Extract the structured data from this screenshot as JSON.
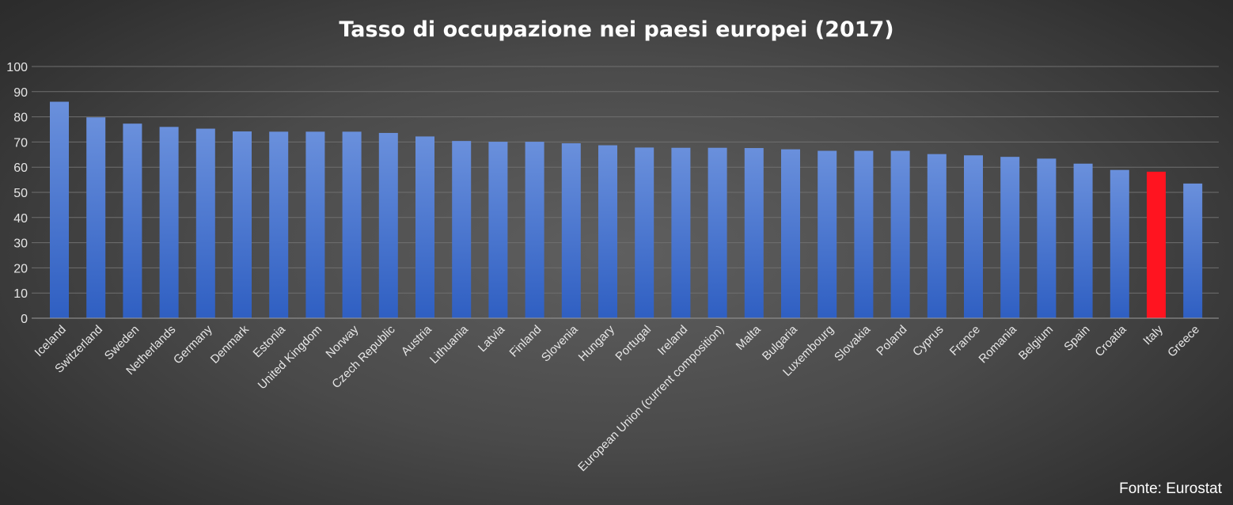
{
  "chart_data": {
    "type": "bar",
    "title": "Tasso di occupazione nei paesi europei (2017)",
    "source": "Fonte: Eurostat",
    "xlabel": "",
    "ylabel": "",
    "ylim": [
      0,
      100
    ],
    "yticks": [
      0,
      10,
      20,
      30,
      40,
      50,
      60,
      70,
      80,
      90,
      100
    ],
    "grid": true,
    "legend": "none",
    "bar_color": "#4a78d0",
    "highlight_color": "#ff1420",
    "highlight_category": "Italy",
    "categories": [
      "Iceland",
      "Switzerland",
      "Sweden",
      "Netherlands",
      "Germany",
      "Denmark",
      "Estonia",
      "United Kingdom",
      "Norway",
      "Czech Republic",
      "Austria",
      "Lithuania",
      "Latvia",
      "Finland",
      "Slovenia",
      "Hungary",
      "Portugal",
      "Ireland",
      "European Union (current composition)",
      "Malta",
      "Bulgaria",
      "Luxembourg",
      "Slovakia",
      "Poland",
      "Cyprus",
      "France",
      "Romania",
      "Belgium",
      "Spain",
      "Croatia",
      "Italy",
      "Greece"
    ],
    "values": [
      86,
      79.8,
      77.3,
      76,
      75.3,
      74.2,
      74.1,
      74.1,
      74.1,
      73.6,
      72.2,
      70.4,
      70.1,
      70.1,
      69.5,
      68.7,
      67.8,
      67.7,
      67.7,
      67.6,
      67.1,
      66.5,
      66.5,
      66.5,
      65.2,
      64.7,
      64.1,
      63.4,
      61.4,
      58.9,
      58.2,
      53.5
    ]
  }
}
